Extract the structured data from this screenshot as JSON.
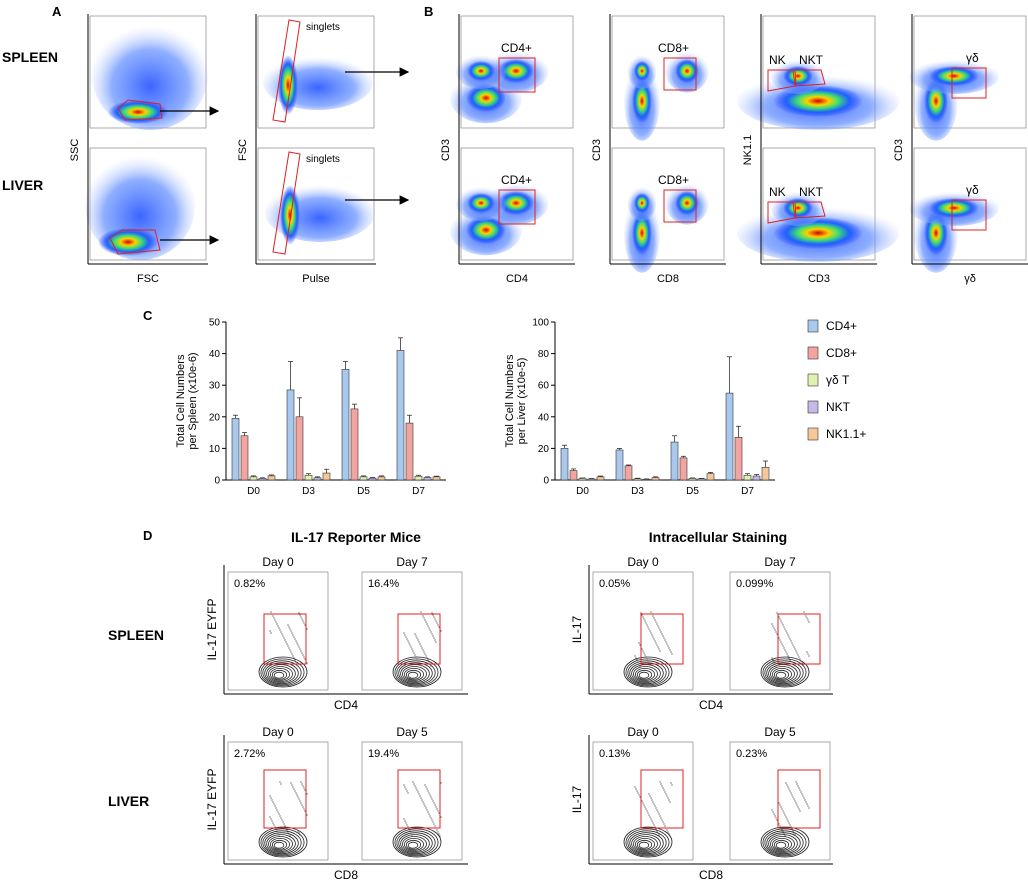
{
  "panels": {
    "a": "A",
    "b": "B",
    "c": "C",
    "d": "D"
  },
  "panel_a": {
    "row_labels": [
      "SPLEEN",
      "LIVER"
    ],
    "scatter_axes": {
      "x": "FSC",
      "y": "SSC"
    },
    "singlet_axes": {
      "x": "Pulse",
      "y": "FSC"
    },
    "gate_label": "singlets"
  },
  "panel_b": {
    "plots": [
      {
        "x": "CD4",
        "y": "CD3",
        "gates": [
          "CD4+"
        ]
      },
      {
        "x": "CD8",
        "y": "CD3",
        "gates": [
          "CD8+"
        ]
      },
      {
        "x": "CD3",
        "y": "NK1.1",
        "gates": [
          "NK",
          "NKT"
        ]
      },
      {
        "x": "γδ",
        "y": "CD3",
        "gates": [
          "γδ"
        ]
      }
    ]
  },
  "chart_data": [
    {
      "type": "bar",
      "title": "",
      "xlabel": "",
      "ylabel": "Total Cell Numbers per Spleen (x10e-6)",
      "ylim": [
        0,
        50
      ],
      "yticks": [
        0,
        10,
        20,
        30,
        40,
        50
      ],
      "categories": [
        "D0",
        "D3",
        "D5",
        "D7"
      ],
      "series": [
        {
          "name": "CD4+",
          "color": "#a9c8ee",
          "values": [
            19.5,
            28.5,
            35,
            41
          ],
          "errors": [
            1,
            9,
            2.5,
            4
          ]
        },
        {
          "name": "CD8+",
          "color": "#f2a5a0",
          "values": [
            14,
            20,
            22.5,
            18
          ],
          "errors": [
            1,
            6,
            1.5,
            2.5
          ]
        },
        {
          "name": "γδ T",
          "color": "#dff0b0",
          "values": [
            1,
            1.5,
            1,
            1.2
          ],
          "errors": [
            0.3,
            0.5,
            0.3,
            0.3
          ]
        },
        {
          "name": "NKT",
          "color": "#c8b8e8",
          "values": [
            0.5,
            0.7,
            0.6,
            0.8
          ],
          "errors": [
            0.2,
            0.3,
            0.2,
            0.2
          ]
        },
        {
          "name": "NK1.1+",
          "color": "#f5c89a",
          "values": [
            1.3,
            2.2,
            1,
            1
          ],
          "errors": [
            0.3,
            1.2,
            0.3,
            0.2
          ]
        }
      ]
    },
    {
      "type": "bar",
      "title": "",
      "xlabel": "",
      "ylabel": "Total Cell Numbers per Liver (x10e-5)",
      "ylim": [
        0,
        100
      ],
      "yticks": [
        0,
        20,
        40,
        60,
        80,
        100
      ],
      "categories": [
        "D0",
        "D3",
        "D5",
        "D7"
      ],
      "series": [
        {
          "name": "CD4+",
          "color": "#a9c8ee",
          "values": [
            20,
            19,
            24,
            55
          ],
          "errors": [
            2,
            1,
            4,
            23
          ]
        },
        {
          "name": "CD8+",
          "color": "#f2a5a0",
          "values": [
            6,
            9,
            14,
            27
          ],
          "errors": [
            1,
            0.5,
            1,
            7
          ]
        },
        {
          "name": "γδ T",
          "color": "#dff0b0",
          "values": [
            1,
            0.8,
            1,
            3
          ],
          "errors": [
            0.3,
            0.3,
            0.3,
            1
          ]
        },
        {
          "name": "NKT",
          "color": "#c8b8e8",
          "values": [
            0.7,
            0.5,
            0.8,
            2.5
          ],
          "errors": [
            0.2,
            0.2,
            0.2,
            1
          ]
        },
        {
          "name": "NK1.1+",
          "color": "#f5c89a",
          "values": [
            2,
            1.5,
            4,
            8
          ],
          "errors": [
            0.5,
            0.5,
            0.8,
            4
          ]
        }
      ]
    }
  ],
  "legend": [
    "CD4+",
    "CD8+",
    "γδ T",
    "NKT",
    "NK1.1+"
  ],
  "panel_d": {
    "reporter_title": "IL-17 Reporter Mice",
    "ics_title": "Intracellular Staining",
    "row_labels": [
      "SPLEEN",
      "LIVER"
    ],
    "spleen_days": [
      "Day 0",
      "Day 7"
    ],
    "liver_days": [
      "Day 0",
      "Day 5"
    ],
    "reporter_ylabel": "IL-17 EYFP",
    "ics_ylabel": "IL-17",
    "spleen_xlabel": "CD4",
    "liver_xlabel": "CD8",
    "reporter_spleen_pcts": [
      "0.82%",
      "16.4%"
    ],
    "reporter_liver_pcts": [
      "2.72%",
      "19.4%"
    ],
    "ics_spleen_pcts": [
      "0.05%",
      "0.099%"
    ],
    "ics_liver_pcts": [
      "0.13%",
      "0.23%"
    ]
  }
}
